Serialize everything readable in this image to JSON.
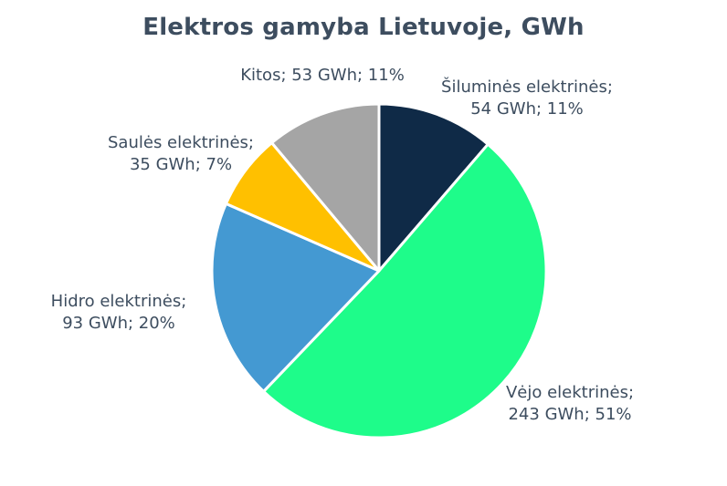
{
  "chart_data": {
    "type": "pie",
    "title": "Elektros gamyba Lietuvoje, GWh",
    "start": "top",
    "direction": "clockwise",
    "slices": [
      {
        "category": "Šiluminės elektrinės",
        "label_line1": "Šiluminės elektrinės;",
        "label_line2": "54 GWh; 11%",
        "value": 54,
        "percent": 11,
        "color": "#0f2a47"
      },
      {
        "category": "Vėjo elektrinės",
        "label_line1": "Vėjo elektrinės;",
        "label_line2": "243 GWh; 51%",
        "value": 243,
        "percent": 51,
        "color": "#1efc8a"
      },
      {
        "category": "Hidro elektrinės",
        "label_line1": "Hidro elektrinės;",
        "label_line2": "93 GWh; 20%",
        "value": 93,
        "percent": 20,
        "color": "#4499d2"
      },
      {
        "category": "Saulės elektrinės",
        "label_line1": "Saulės elektrinės;",
        "label_line2": "35 GWh; 7%",
        "value": 35,
        "percent": 7,
        "color": "#ffc000"
      },
      {
        "category": "Kitos",
        "label_line1": "Kitos; 53 GWh; 11%",
        "label_line2": "",
        "value": 53,
        "percent": 11,
        "color": "#a5a5a5"
      }
    ]
  }
}
